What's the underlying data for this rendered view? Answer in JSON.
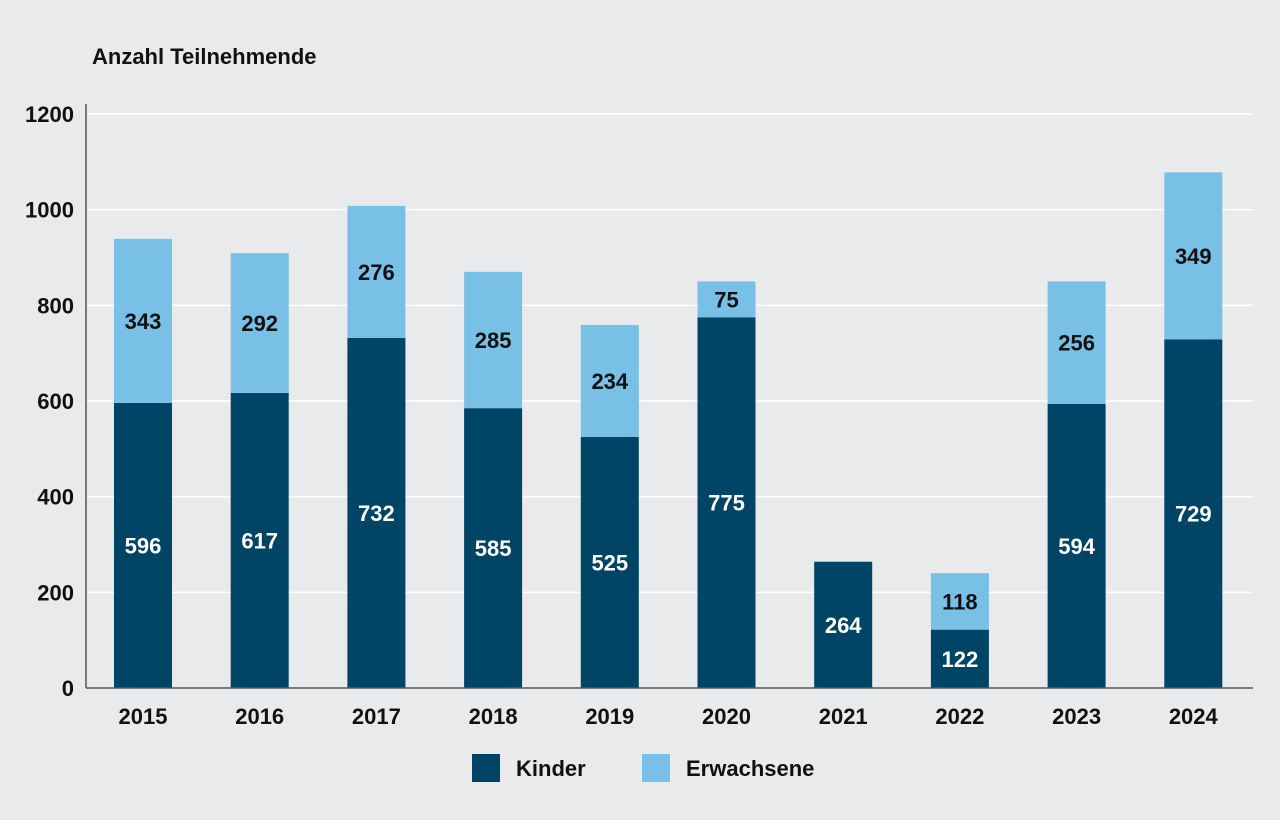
{
  "chart_data": {
    "type": "bar",
    "stacked": true,
    "ylabel": "Anzahl Teilnehmende",
    "xlabel": "",
    "ylim": [
      0,
      1200
    ],
    "yticks": [
      0,
      200,
      400,
      600,
      800,
      1000,
      1200
    ],
    "grid": true,
    "legend_position": "bottom",
    "categories": [
      "2015",
      "2016",
      "2017",
      "2018",
      "2019",
      "2020",
      "2021",
      "2022",
      "2023",
      "2024"
    ],
    "series": [
      {
        "name": "Kinder",
        "color": "#004466",
        "label_color": "#ffffff",
        "values": [
          596,
          617,
          732,
          585,
          525,
          775,
          264,
          122,
          594,
          729
        ]
      },
      {
        "name": "Erwachsene",
        "color": "#79c0e6",
        "label_color": "#111111",
        "values": [
          343,
          292,
          276,
          285,
          234,
          75,
          0,
          118,
          256,
          349
        ]
      }
    ]
  }
}
